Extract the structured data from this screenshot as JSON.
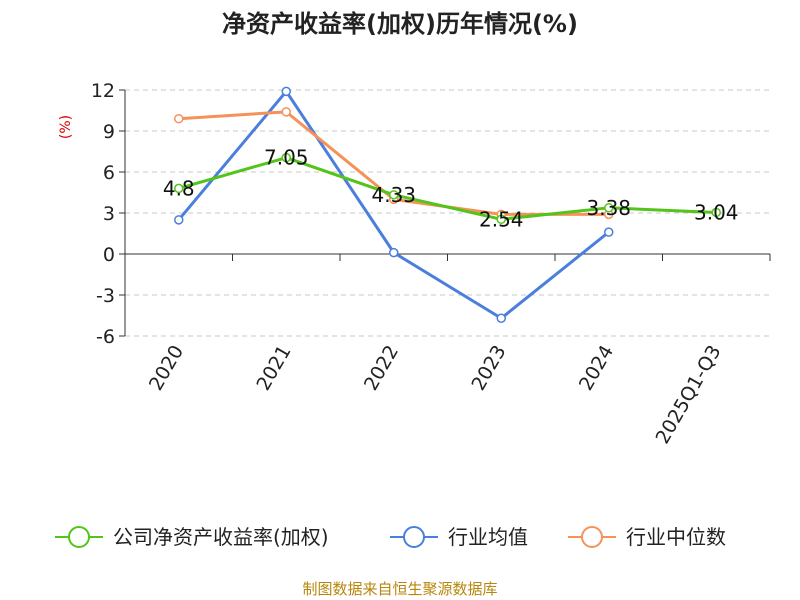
{
  "chart_data": {
    "type": "line",
    "title": "净资产收益率(加权)历年情况(%)",
    "ylabel": "(%)",
    "xlabel": "",
    "categories": [
      "2020",
      "2021",
      "2022",
      "2023",
      "2024",
      "2025Q1-Q3"
    ],
    "ylim": [
      -6,
      12
    ],
    "yticks": [
      12,
      9,
      6,
      3,
      0,
      -3,
      -6
    ],
    "grid": true,
    "legend_position": "bottom",
    "series": [
      {
        "name": "公司净资产收益率(加权)",
        "color": "#52c41a",
        "values": [
          4.8,
          7.05,
          4.33,
          2.54,
          3.38,
          3.04
        ],
        "labels": [
          "4.8",
          "7.05",
          "4.33",
          "2.54",
          "3.38",
          "3.04"
        ]
      },
      {
        "name": "行业均值",
        "color": "#4a7fdc",
        "values": [
          2.5,
          11.9,
          0.1,
          -4.7,
          1.6,
          null
        ],
        "labels": []
      },
      {
        "name": "行业中位数",
        "color": "#f5925a",
        "values": [
          9.9,
          10.4,
          4.0,
          2.9,
          2.9,
          null
        ],
        "labels": []
      }
    ]
  },
  "source_text": "制图数据来自恒生聚源数据库"
}
